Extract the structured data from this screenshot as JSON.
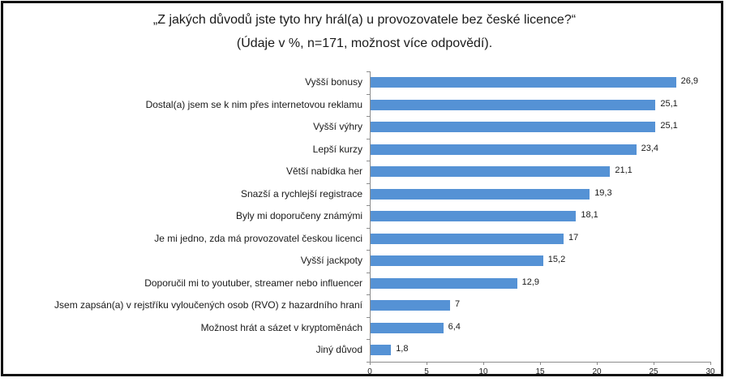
{
  "title": {
    "line1": "„Z jakých důvodů jste tyto hry hrál(a) u provozovatele bez české licence?“",
    "line2": "(Údaje v %, n=171, možnost více odpovědí)."
  },
  "style": {
    "bar_color": "#5592d5",
    "axis_color": "#8c8c8c",
    "border_color": "#111111"
  },
  "chart_data": {
    "type": "bar",
    "orientation": "horizontal",
    "title": "„Z jakých důvodů jste tyto hry hrál(a) u provozovatele bez české licence?“ (Údaje v %, n=171, možnost více odpovědí).",
    "xlabel": "",
    "ylabel": "",
    "xlim": [
      0,
      30
    ],
    "xticks": [
      0,
      5,
      10,
      15,
      20,
      25,
      30
    ],
    "grid": false,
    "legend": null,
    "categories": [
      "Vyšší bonusy",
      "Dostal(a) jsem se k nim přes internetovou reklamu",
      "Vyšší výhry",
      "Lepší kurzy",
      "Větší nabídka her",
      "Snazší a rychlejší registrace",
      "Byly mi doporučeny známými",
      "Je mi jedno, zda má provozovatel českou licenci",
      "Vyšší jackpoty",
      "Doporučil mi to youtuber, streamer nebo influencer",
      "Jsem zapsán(a) v rejstříku vyloučených osob (RVO) z hazardního hraní",
      "Možnost hrát a sázet v kryptoměnách",
      "Jiný důvod"
    ],
    "values": [
      26.9,
      25.1,
      25.1,
      23.4,
      21.1,
      19.3,
      18.1,
      17,
      15.2,
      12.9,
      7,
      6.4,
      1.8
    ],
    "value_labels": [
      "26,9",
      "25,1",
      "25,1",
      "23,4",
      "21,1",
      "19,3",
      "18,1",
      "17",
      "15,2",
      "12,9",
      "7",
      "6,4",
      "1,8"
    ]
  }
}
